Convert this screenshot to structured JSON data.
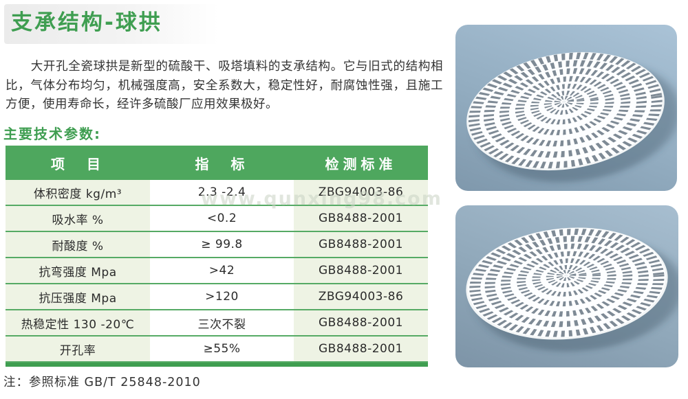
{
  "page": {
    "title": "支承结构-球拱",
    "intro": "大开孔全瓷球拱是新型的硫酸干、吸塔填料的支承结构。它与旧式的结构相比，气体分布均匀，机械强度高，安全系数大，稳定性好，耐腐蚀性强，且施工方便，使用寿命长，经许多硫酸厂应用效果极好。",
    "section_heading": "主要技术参数:",
    "watermark": "www.qunxing98.com",
    "note": "注：参照标准 GB/T 25848-2010"
  },
  "table": {
    "headers": [
      "项　目",
      "指　标",
      "检测标准"
    ],
    "rows": [
      {
        "item": "体积密度 kg/m³",
        "value": "2.3 -2.4",
        "standard": "ZBG94003-86"
      },
      {
        "item": "吸水率 %",
        "value": "<0.2",
        "standard": "GB8488-2001"
      },
      {
        "item": "耐酸度 %",
        "value": "≥ 99.8",
        "standard": "GB8488-2001"
      },
      {
        "item": "抗弯强度 Mpa",
        "value": ">42",
        "standard": "GB8488-2001"
      },
      {
        "item": "抗压强度 Mpa",
        "value": ">120",
        "standard": "ZBG94003-86"
      },
      {
        "item": "热稳定性 130 -20℃",
        "value": "三次不裂",
        "standard": "GB8488-2001"
      },
      {
        "item": "开孔率",
        "value": "≥55%",
        "standard": "GB8488-2001"
      }
    ]
  },
  "colors": {
    "accent_green": "#4ea75e",
    "title_green": "#3f9e51",
    "row_line_green": "#55aa64",
    "cell_tint": "#eef3e4",
    "photo_background": "#93adc1",
    "dome_white": "#f2f5f6",
    "dome_slot": "#7e8a95"
  }
}
